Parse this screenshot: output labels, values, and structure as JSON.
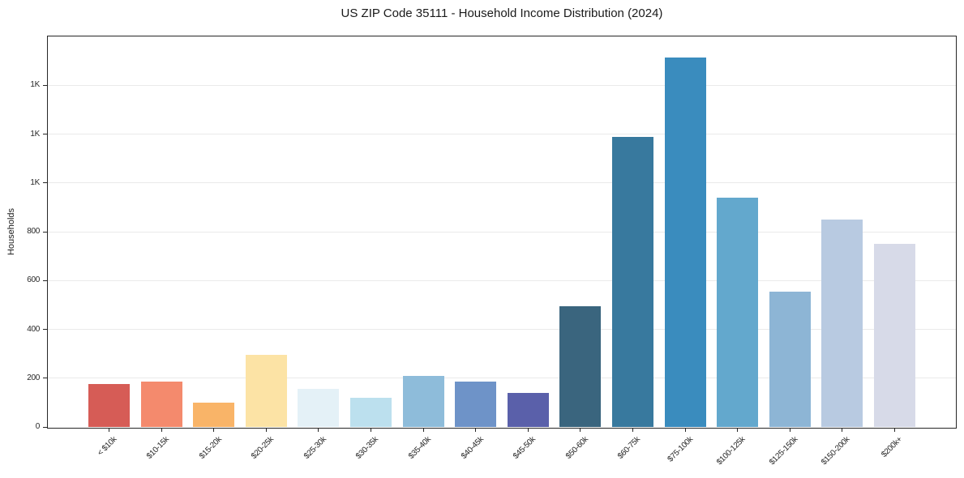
{
  "chart_data": {
    "type": "bar",
    "title": "US ZIP Code 35111 - Household Income Distribution (2024)",
    "xlabel": "",
    "ylabel": "Households",
    "categories": [
      "< $10k",
      "$10-15k",
      "$15-20k",
      "$20-25k",
      "$25-30k",
      "$30-35k",
      "$35-40k",
      "$40-45k",
      "$45-50k",
      "$50-60k",
      "$60-75k",
      "$75-100k",
      "$100-125k",
      "$125-150k",
      "$150-200k",
      "$200k+"
    ],
    "values": [
      175,
      185,
      100,
      295,
      155,
      120,
      210,
      185,
      140,
      495,
      1190,
      1515,
      940,
      555,
      850,
      750
    ],
    "bar_colors": [
      "#d65c56",
      "#f48a6d",
      "#f9b468",
      "#fce3a5",
      "#e4f1f7",
      "#bce0ee",
      "#8ebcda",
      "#6e93c8",
      "#5a60aa",
      "#3a657e",
      "#38799e",
      "#3a8cbe",
      "#63a8cd",
      "#8db5d5",
      "#b8cae1",
      "#d7dae8"
    ],
    "ylim": [
      0,
      1600
    ],
    "ytick_values": [
      0,
      200,
      400,
      600,
      800,
      1000,
      1200,
      1400
    ],
    "ytick_labels": [
      "0",
      "200",
      "400",
      "600",
      "800",
      "1K",
      "1K",
      "1K"
    ],
    "grid": true,
    "legend": false,
    "colors": {
      "background": "#ffffff",
      "grid": "#eaeaea",
      "spine": "#262626",
      "text": "#1a1a1a"
    }
  }
}
